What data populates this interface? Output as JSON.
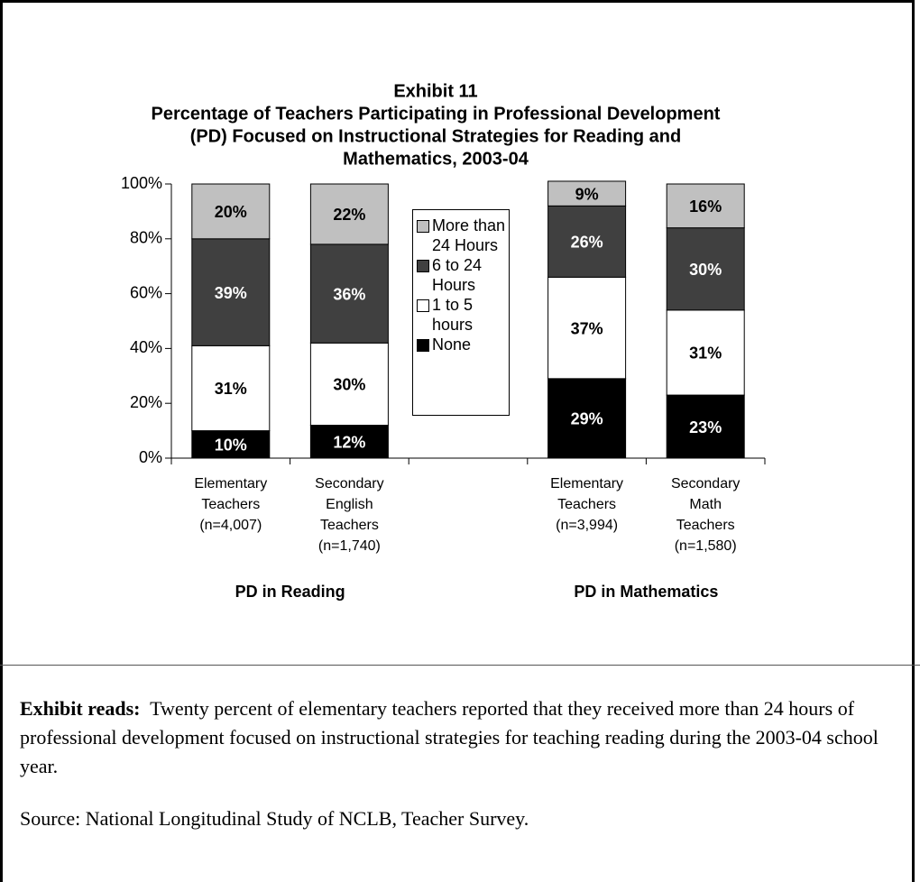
{
  "chart_data": {
    "type": "stacked-bar",
    "title": [
      "Exhibit 11",
      "Percentage of Teachers Participating in Professional Development",
      "(PD) Focused on Instructional Strategies for Reading and",
      "Mathematics, 2003-04"
    ],
    "categories": [
      [
        "Elementary",
        "Teachers",
        "(n=4,007)"
      ],
      [
        "Secondary",
        "English",
        "Teachers",
        "(n=1,740)"
      ],
      null,
      [
        "Elementary",
        "Teachers",
        "(n=3,994)"
      ],
      [
        "Secondary",
        "Math",
        "Teachers",
        "(n=1,580)"
      ]
    ],
    "groups": [
      "PD in Reading",
      "PD in Mathematics"
    ],
    "series": [
      {
        "name": "None",
        "color": "#000000",
        "values": [
          10,
          12,
          null,
          29,
          23
        ],
        "value_labels": [
          "10%",
          "12%",
          null,
          "29%",
          "23%"
        ]
      },
      {
        "name": "1 to 5 hours",
        "color": "#ffffff",
        "values": [
          31,
          30,
          null,
          37,
          31
        ],
        "value_labels": [
          "31%",
          "30%",
          null,
          "37%",
          "31%"
        ]
      },
      {
        "name": "6 to 24 Hours",
        "color": "#404040",
        "values": [
          39,
          36,
          null,
          26,
          30
        ],
        "value_labels": [
          "39%",
          "36%",
          null,
          "26%",
          "30%"
        ]
      },
      {
        "name": "More than 24 Hours",
        "color": "#c0c0c0",
        "values": [
          20,
          22,
          null,
          9,
          16
        ],
        "value_labels": [
          "20%",
          "22%",
          null,
          "9%",
          "16%"
        ]
      }
    ],
    "ylim": [
      0,
      100
    ],
    "yticks": [
      {
        "value": 0,
        "label": "0%"
      },
      {
        "value": 20,
        "label": "20%"
      },
      {
        "value": 40,
        "label": "40%"
      },
      {
        "value": 60,
        "label": "60%"
      },
      {
        "value": 80,
        "label": "80%"
      },
      {
        "value": 100,
        "label": "100%"
      }
    ],
    "legend": "center"
  },
  "note": {
    "label": "Exhibit reads:",
    "text": "Twenty percent of elementary teachers reported that they received more than 24 hours of professional development focused on instructional strategies for teaching reading during the 2003-04 school year."
  },
  "source": "Source: National Longitudinal Study of NCLB, Teacher Survey."
}
